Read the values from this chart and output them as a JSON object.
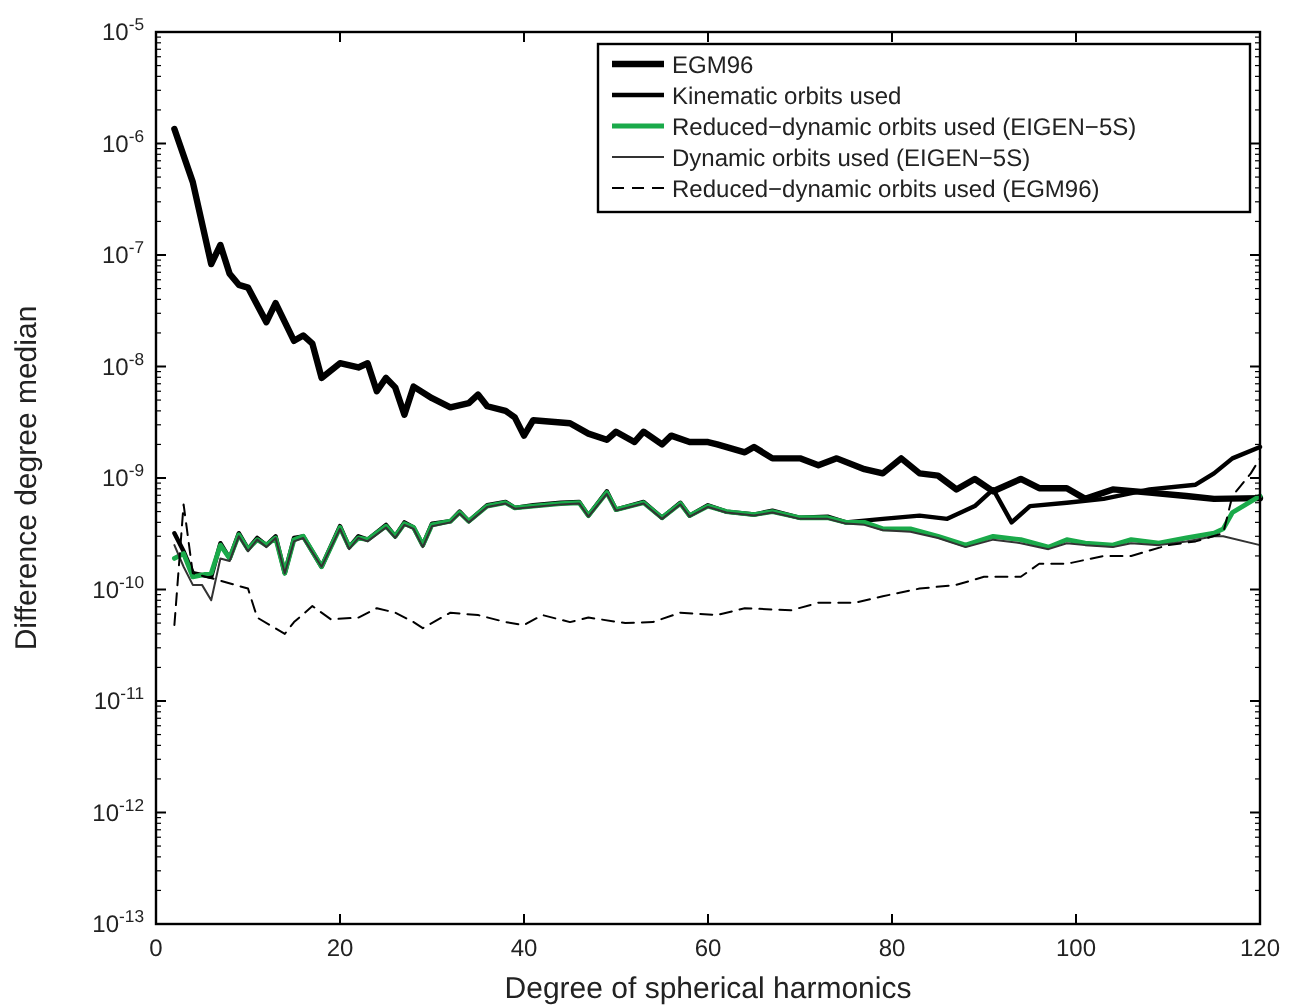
{
  "chart_data": {
    "type": "line",
    "xlabel": "Degree of spherical harmonics",
    "ylabel": "Difference degree median",
    "log": "y",
    "grid": false,
    "legend": "top right",
    "xlim": [
      0,
      120
    ],
    "xticks": [
      0,
      20,
      40,
      60,
      80,
      100,
      120
    ],
    "ylim": [
      1e-13,
      1e-05
    ],
    "yticks": [
      {
        "value": 1e-13,
        "label": "10$^{-13}$"
      },
      {
        "value": 1e-12,
        "label": "10$^{-12}$"
      },
      {
        "value": 1e-11,
        "label": "10$^{-11}$"
      },
      {
        "value": 1e-10,
        "label": "10$^{-10}$"
      },
      {
        "value": 1e-09,
        "label": "10$^{-9}$"
      },
      {
        "value": 1e-08,
        "label": "10$^{-8}$"
      },
      {
        "value": 1e-07,
        "label": "10$^{-7}$"
      },
      {
        "value": 1e-06,
        "label": "10$^{-6}$"
      },
      {
        "value": 1e-05,
        "label": "10$^{-5}$"
      }
    ],
    "series": [
      {
        "name": "EGM96",
        "color": "#000000",
        "line_style": "solid",
        "x": [
          2,
          4,
          6,
          7,
          8,
          9,
          10,
          12,
          13,
          15,
          16,
          17,
          18,
          20,
          22,
          23,
          24,
          25,
          26,
          27,
          28,
          30,
          32,
          34,
          35,
          36,
          38,
          39,
          40,
          41,
          45,
          47,
          49,
          50,
          52,
          53,
          55,
          56,
          58,
          60,
          61,
          64,
          65,
          67,
          70,
          72,
          74,
          77,
          79,
          81,
          83,
          85,
          87,
          89,
          91,
          94,
          96,
          99,
          101,
          104,
          108,
          112,
          115,
          120
        ],
        "values": [
          1.35e-06,
          4.5e-07,
          8.3e-08,
          1.23e-07,
          6.8e-08,
          5.4e-08,
          5.1e-08,
          2.5e-08,
          3.7e-08,
          1.7e-08,
          1.9e-08,
          1.6e-08,
          7.9e-09,
          1.07e-08,
          9.8e-09,
          1.07e-08,
          6e-09,
          7.9e-09,
          6.5e-09,
          3.7e-09,
          6.6e-09,
          5.2e-09,
          4.3e-09,
          4.7e-09,
          5.6e-09,
          4.4e-09,
          4e-09,
          3.5e-09,
          2.4e-09,
          3.3e-09,
          3.1e-09,
          2.5e-09,
          2.2e-09,
          2.6e-09,
          2.1e-09,
          2.6e-09,
          2e-09,
          2.4e-09,
          2.1e-09,
          2.1e-09,
          2e-09,
          1.7e-09,
          1.9e-09,
          1.5e-09,
          1.5e-09,
          1.3e-09,
          1.5e-09,
          1.2e-09,
          1.1e-09,
          1.5e-09,
          1.1e-09,
          1.05e-09,
          7.9e-10,
          9.8e-10,
          7.6e-10,
          9.8e-10,
          8.1e-10,
          8.1e-10,
          6.5e-10,
          7.9e-10,
          7.4e-10,
          6.9e-10,
          6.5e-10,
          6.6e-10
        ]
      },
      {
        "name": "Kinematic orbits used",
        "color": "#000000",
        "line_style": "solid",
        "x": [
          2,
          3,
          4,
          6,
          7,
          8,
          9,
          10,
          11,
          12,
          13,
          14,
          15,
          16,
          18,
          20,
          21,
          22,
          23,
          25,
          26,
          27,
          28,
          29,
          30,
          32,
          33,
          34,
          36,
          38,
          39,
          41,
          44,
          46,
          47,
          49,
          50,
          53,
          55,
          57,
          58,
          60,
          62,
          65,
          67,
          70,
          73,
          75,
          79,
          83,
          86,
          89,
          91,
          93,
          95,
          99,
          103,
          108,
          113,
          115,
          117,
          120
        ],
        "values": [
          3.2e-10,
          2.2e-10,
          1.4e-10,
          1.3e-10,
          2.6e-10,
          1.9e-10,
          3.2e-10,
          2.3e-10,
          2.9e-10,
          2.5e-10,
          3e-10,
          1.4e-10,
          2.9e-10,
          3e-10,
          1.6e-10,
          3.7e-10,
          2.4e-10,
          3e-10,
          2.8e-10,
          3.8e-10,
          3e-10,
          4e-10,
          3.6e-10,
          2.5e-10,
          3.9e-10,
          4.1e-10,
          5e-10,
          4.1e-10,
          5.7e-10,
          6.1e-10,
          5.4e-10,
          5.7e-10,
          6e-10,
          6.1e-10,
          4.6e-10,
          7.6e-10,
          5.2e-10,
          6.1e-10,
          4.4e-10,
          6e-10,
          4.6e-10,
          5.7e-10,
          5e-10,
          4.7e-10,
          5.1e-10,
          4.4e-10,
          4.5e-10,
          4e-10,
          4.3e-10,
          4.6e-10,
          4.3e-10,
          5.6e-10,
          7.9e-10,
          4e-10,
          5.6e-10,
          6e-10,
          6.5e-10,
          7.9e-10,
          8.7e-10,
          1.1e-09,
          1.5e-09,
          1.9e-09
        ]
      },
      {
        "name": "Reduced−dynamic orbits used (EIGEN−5S)",
        "color": "#1aaa4a",
        "line_style": "solid",
        "x": [
          2,
          3,
          4,
          6,
          7,
          8,
          9,
          10,
          11,
          12,
          13,
          14,
          15,
          16,
          18,
          20,
          21,
          22,
          23,
          25,
          26,
          27,
          28,
          29,
          30,
          32,
          33,
          34,
          36,
          38,
          39,
          41,
          44,
          46,
          47,
          49,
          50,
          53,
          55,
          57,
          58,
          60,
          62,
          65,
          67,
          70,
          73,
          75,
          77,
          79,
          82,
          85,
          88,
          91,
          94,
          97,
          99,
          101,
          104,
          106,
          109,
          112,
          115,
          116,
          117,
          120
        ],
        "values": [
          1.9e-10,
          2.1e-10,
          1.3e-10,
          1.4e-10,
          2.5e-10,
          1.9e-10,
          3.1e-10,
          2.3e-10,
          2.8e-10,
          2.5e-10,
          2.9e-10,
          1.4e-10,
          2.8e-10,
          3e-10,
          1.6e-10,
          3.6e-10,
          2.4e-10,
          2.9e-10,
          2.8e-10,
          3.7e-10,
          3e-10,
          3.9e-10,
          3.6e-10,
          2.5e-10,
          3.8e-10,
          4.1e-10,
          4.9e-10,
          4.1e-10,
          5.6e-10,
          6e-10,
          5.4e-10,
          5.6e-10,
          5.9e-10,
          6e-10,
          4.6e-10,
          7.4e-10,
          5.2e-10,
          6e-10,
          4.4e-10,
          5.9e-10,
          4.6e-10,
          5.6e-10,
          5e-10,
          4.7e-10,
          5e-10,
          4.4e-10,
          4.4e-10,
          4e-10,
          4e-10,
          3.5e-10,
          3.5e-10,
          3e-10,
          2.5e-10,
          3e-10,
          2.8e-10,
          2.4e-10,
          2.8e-10,
          2.6e-10,
          2.5e-10,
          2.8e-10,
          2.6e-10,
          2.9e-10,
          3.2e-10,
          3.5e-10,
          4.9e-10,
          6.9e-10
        ]
      },
      {
        "name": "Dynamic orbits used (EIGEN−5S)",
        "color": "#333333",
        "line_style": "solid",
        "x": [
          2,
          3,
          4,
          5,
          6,
          7,
          8,
          9,
          10,
          11,
          12,
          13,
          14,
          15,
          16,
          18,
          20,
          21,
          22,
          23,
          25,
          26,
          27,
          28,
          29,
          30,
          32,
          33,
          34,
          36,
          38,
          39,
          41,
          44,
          46,
          47,
          49,
          50,
          53,
          55,
          57,
          58,
          60,
          62,
          65,
          67,
          70,
          73,
          75,
          77,
          79,
          82,
          85,
          88,
          91,
          94,
          97,
          99,
          101,
          104,
          106,
          109,
          112,
          115,
          116,
          120
        ],
        "values": [
          2.5e-10,
          1.6e-10,
          1.1e-10,
          1.1e-10,
          8e-11,
          1.9e-10,
          1.8e-10,
          3e-10,
          2.2e-10,
          2.8e-10,
          2.4e-10,
          2.9e-10,
          1.4e-10,
          2.7e-10,
          2.9e-10,
          1.6e-10,
          3.5e-10,
          2.3e-10,
          2.9e-10,
          2.7e-10,
          3.6e-10,
          2.9e-10,
          3.8e-10,
          3.5e-10,
          2.4e-10,
          3.7e-10,
          4e-10,
          4.8e-10,
          4e-10,
          5.5e-10,
          5.9e-10,
          5.3e-10,
          5.5e-10,
          5.8e-10,
          5.9e-10,
          4.5e-10,
          7.2e-10,
          5.1e-10,
          5.9e-10,
          4.3e-10,
          5.8e-10,
          4.5e-10,
          5.5e-10,
          4.9e-10,
          4.6e-10,
          4.9e-10,
          4.3e-10,
          4.3e-10,
          3.9e-10,
          3.8e-10,
          3.4e-10,
          3.3e-10,
          2.9e-10,
          2.4e-10,
          2.8e-10,
          2.6e-10,
          2.3e-10,
          2.6e-10,
          2.5e-10,
          2.4e-10,
          2.6e-10,
          2.5e-10,
          2.7e-10,
          3e-10,
          3e-10,
          2.5e-10
        ]
      },
      {
        "name": "Reduced−dynamic orbits used (EGM96)",
        "color": "#000000",
        "line_style": "dashed",
        "x": [
          2,
          3,
          4,
          7,
          10,
          11,
          14,
          15,
          17,
          19,
          22,
          24,
          26,
          28,
          29,
          32,
          35,
          38,
          40,
          42,
          45,
          47,
          51,
          54,
          57,
          61,
          64,
          69,
          72,
          76,
          79,
          83,
          87,
          90,
          94,
          96,
          99,
          103,
          106,
          110,
          113,
          116,
          117,
          119,
          120
        ],
        "values": [
          4.8e-11,
          5.8e-10,
          1.4e-10,
          1.2e-10,
          1.02e-10,
          5.6e-11,
          4e-11,
          5.1e-11,
          7.1e-11,
          5.4e-11,
          5.6e-11,
          6.8e-11,
          6.2e-11,
          5.1e-11,
          4.5e-11,
          6.2e-11,
          5.9e-11,
          5.1e-11,
          4.8e-11,
          5.9e-11,
          5.1e-11,
          5.6e-11,
          5e-11,
          5.1e-11,
          6.2e-11,
          5.9e-11,
          6.8e-11,
          6.5e-11,
          7.6e-11,
          7.6e-11,
          8.7e-11,
          1.02e-10,
          1.1e-10,
          1.3e-10,
          1.3e-10,
          1.7e-10,
          1.7e-10,
          2e-10,
          2e-10,
          2.5e-10,
          2.7e-10,
          3.2e-10,
          6.9e-10,
          1.1e-09,
          1.5e-09
        ]
      }
    ]
  }
}
